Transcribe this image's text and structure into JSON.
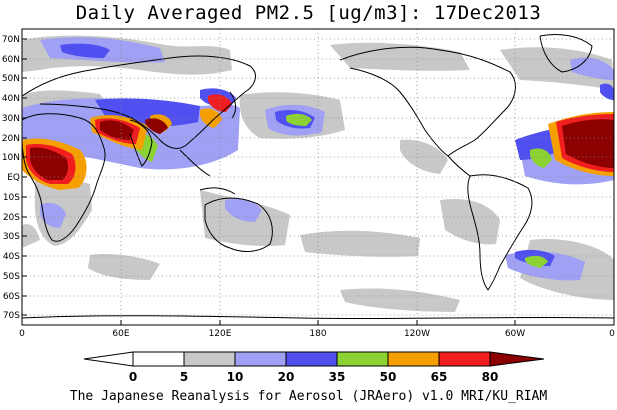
{
  "title": "Daily Averaged PM2.5 [ug/m3]: 17Dec2013",
  "footer": "The Japanese Reanalysis for Aerosol (JRAero) v1.0 MRI/KU_RIAM",
  "lat_ticks": [
    "70N",
    "60N",
    "50N",
    "40N",
    "30N",
    "20N",
    "10N",
    "EQ",
    "10S",
    "20S",
    "30S",
    "40S",
    "50S",
    "60S",
    "70S"
  ],
  "lon_ticks": [
    "0",
    "60E",
    "120E",
    "180",
    "120W",
    "60W",
    "0"
  ],
  "colorbar": {
    "labels": [
      "0",
      "5",
      "10",
      "20",
      "35",
      "50",
      "65",
      "80"
    ],
    "colors": [
      "#ffffff",
      "#c8c8c8",
      "#a0a0f5",
      "#5050f0",
      "#8cd232",
      "#f5a000",
      "#f01e1e",
      "#8c0000"
    ]
  },
  "map_extent": {
    "lon": [
      0,
      360
    ],
    "lat": [
      -75,
      75
    ]
  }
}
